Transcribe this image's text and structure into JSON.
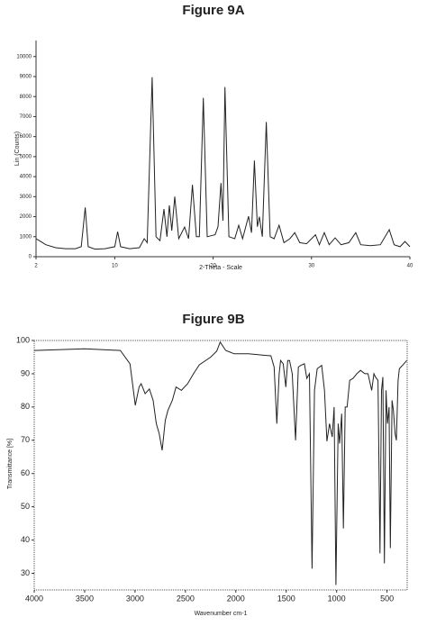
{
  "chart_data": [
    {
      "type": "line",
      "title": "Figure 9A",
      "xlabel": "2-Theta - Scale",
      "ylabel": "Lin (Counts)",
      "xlim": [
        2,
        40
      ],
      "xticks": [
        2,
        10,
        20,
        30,
        40
      ],
      "ylim": [
        0,
        10800
      ],
      "yticks": [
        0,
        1000,
        2000,
        3000,
        4000,
        5000,
        6000,
        7000,
        8000,
        9000,
        10000
      ],
      "x": [
        2,
        2.5,
        3,
        4,
        5,
        6,
        6.6,
        7.0,
        7.3,
        8,
        9,
        10,
        10.3,
        10.6,
        11.5,
        12.5,
        13,
        13.3,
        13.8,
        14.2,
        14.6,
        15.0,
        15.3,
        15.55,
        15.8,
        16.1,
        16.5,
        17.1,
        17.5,
        17.9,
        18.3,
        18.6,
        19.0,
        19.4,
        20.2,
        20.5,
        20.8,
        21.0,
        21.2,
        21.6,
        22.2,
        22.6,
        23.0,
        23.6,
        23.9,
        24.2,
        24.5,
        24.7,
        25.0,
        25.4,
        25.8,
        26.2,
        26.7,
        27.2,
        27.8,
        28.3,
        28.8,
        29.5,
        30.4,
        30.8,
        31.3,
        31.8,
        32.4,
        33,
        33.8,
        34.5,
        35,
        36,
        37,
        37.9,
        38.4,
        39,
        39.5,
        40
      ],
      "series": [
        {
          "color": "#222222",
          "values": [
            900,
            750,
            600,
            450,
            400,
            400,
            500,
            2460,
            500,
            380,
            400,
            500,
            1250,
            500,
            400,
            450,
            900,
            700,
            8970,
            1000,
            800,
            2380,
            1000,
            2560,
            1300,
            3000,
            900,
            1480,
            900,
            3590,
            1000,
            1000,
            7940,
            1000,
            1100,
            1500,
            3680,
            1800,
            8480,
            1000,
            900,
            1570,
            900,
            2020,
            1200,
            4800,
            1500,
            2000,
            1000,
            6730,
            1000,
            900,
            1570,
            700,
            900,
            1200,
            700,
            650,
            1100,
            600,
            1200,
            600,
            940,
            600,
            700,
            1200,
            600,
            550,
            600,
            1350,
            600,
            500,
            760,
            500
          ]
        }
      ]
    },
    {
      "type": "line",
      "title": "Figure 9B",
      "xlabel": "Wavenumber cm-1",
      "ylabel": "Transmittance [%]",
      "xlim": [
        4000,
        300
      ],
      "xticks": [
        4000,
        3500,
        3000,
        2500,
        2000,
        1500,
        1000,
        500
      ],
      "ylim": [
        25,
        100
      ],
      "yticks": [
        30,
        40,
        50,
        60,
        70,
        80,
        90,
        100
      ],
      "x": [
        4000,
        3500,
        3146,
        3050,
        2997,
        2960,
        2939,
        2900,
        2858,
        2820,
        2789,
        2760,
        2731,
        2700,
        2674,
        2630,
        2593,
        2540,
        2478,
        2420,
        2362,
        2250,
        2189,
        2155,
        2100,
        2016,
        1874,
        1700,
        1652,
        1620,
        1593,
        1570,
        1556,
        1530,
        1504,
        1485,
        1467,
        1440,
        1407,
        1380,
        1356,
        1320,
        1296,
        1270,
        1244,
        1220,
        1193,
        1148,
        1120,
        1096,
        1070,
        1044,
        1025,
        1007,
        985,
        970,
        950,
        933,
        915,
        896,
        870,
        837,
        800,
        763,
        720,
        689,
        652,
        630,
        615,
        590,
        570,
        555,
        541,
        526,
        510,
        496,
        480,
        467,
        450,
        437,
        420,
        407,
        390,
        378,
        333,
        304
      ],
      "series": [
        {
          "color": "#222222",
          "values": [
            97,
            97.5,
            97,
            93,
            80.5,
            86,
            87,
            84,
            85.4,
            82,
            75,
            72,
            67,
            76,
            79,
            82,
            86,
            85,
            87,
            90,
            92.7,
            95,
            96.8,
            99.5,
            97,
            96,
            96,
            95.5,
            95.4,
            92,
            75,
            90,
            94,
            93,
            86,
            94,
            94,
            90,
            70,
            92,
            92.5,
            93,
            88.6,
            90,
            31.4,
            85,
            91.5,
            92.5,
            85,
            69.7,
            75,
            71,
            80,
            26.5,
            75,
            69,
            78,
            43.5,
            80,
            80,
            88,
            88.6,
            90,
            91,
            90,
            90,
            85,
            90,
            89,
            88,
            36,
            85,
            89,
            33,
            85,
            75,
            80,
            37.6,
            82,
            79,
            72,
            70,
            88,
            91.5,
            93,
            94
          ]
        }
      ]
    }
  ]
}
